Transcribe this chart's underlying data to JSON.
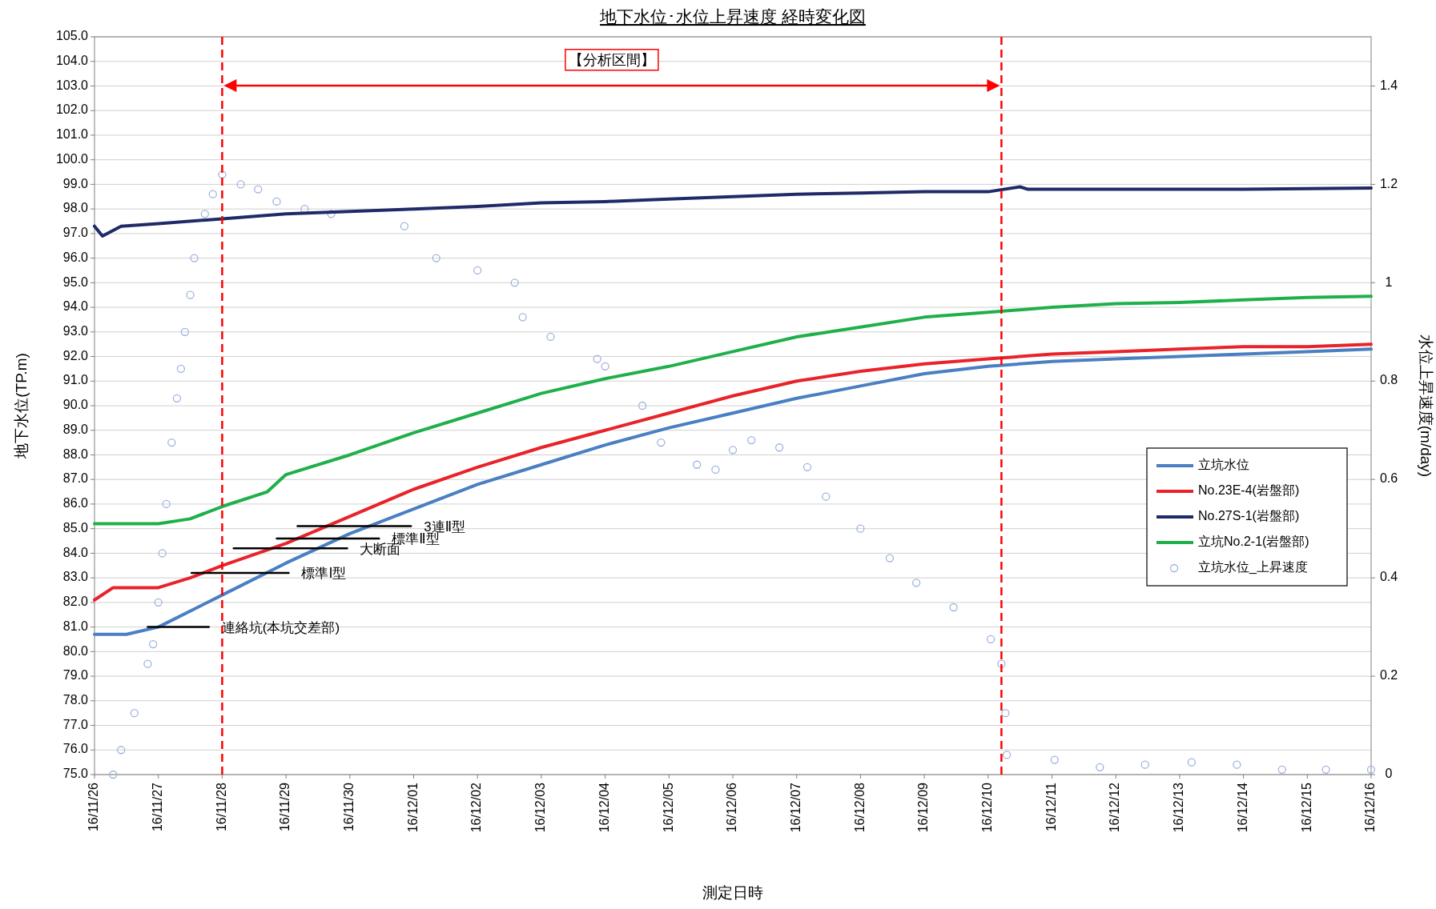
{
  "chart_data": {
    "type": "line",
    "title": "地下水位･水位上昇速度 経時変化図",
    "xlabel": "測定日時",
    "ylabel": "地下水位(TP.m)",
    "y2label": "水位上昇速度(m/day)",
    "xlim": [
      "--11-26",
      "--12-16"
    ],
    "xticks": [
      {
        "value": "--11-26",
        "label": "16/11/26"
      },
      {
        "value": "--11-27",
        "label": "16/11/27"
      },
      {
        "value": "--11-28",
        "label": "16/11/28"
      },
      {
        "value": "--11-29",
        "label": "16/11/29"
      },
      {
        "value": "--11-30",
        "label": "16/11/30"
      },
      {
        "value": "--12-01",
        "label": "16/12/01"
      },
      {
        "value": "--12-02",
        "label": "16/12/02"
      },
      {
        "value": "--12-03",
        "label": "16/12/03"
      },
      {
        "value": "--12-04",
        "label": "16/12/04"
      },
      {
        "value": "--12-05",
        "label": "16/12/05"
      },
      {
        "value": "--12-06",
        "label": "16/12/06"
      },
      {
        "value": "--12-07",
        "label": "16/12/07"
      },
      {
        "value": "--12-08",
        "label": "16/12/08"
      },
      {
        "value": "--12-09",
        "label": "16/12/09"
      },
      {
        "value": "--12-10",
        "label": "16/12/10"
      },
      {
        "value": "--12-11",
        "label": "16/12/11"
      },
      {
        "value": "--12-12",
        "label": "16/12/12"
      },
      {
        "value": "--12-13",
        "label": "16/12/13"
      },
      {
        "value": "--12-14",
        "label": "16/12/14"
      },
      {
        "value": "--12-15",
        "label": "16/12/15"
      },
      {
        "value": "--12-16",
        "label": "16/12/16"
      }
    ],
    "ylim": [
      75,
      105
    ],
    "yticks": [
      {
        "value": 75,
        "label": "75.0"
      },
      {
        "value": 76,
        "label": "76.0"
      },
      {
        "value": 77,
        "label": "77.0"
      },
      {
        "value": 78,
        "label": "78.0"
      },
      {
        "value": 79,
        "label": "79.0"
      },
      {
        "value": 80,
        "label": "80.0"
      },
      {
        "value": 81,
        "label": "81.0"
      },
      {
        "value": 82,
        "label": "82.0"
      },
      {
        "value": 83,
        "label": "83.0"
      },
      {
        "value": 84,
        "label": "84.0"
      },
      {
        "value": 85,
        "label": "85.0"
      },
      {
        "value": 86,
        "label": "86.0"
      },
      {
        "value": 87,
        "label": "87.0"
      },
      {
        "value": 88,
        "label": "88.0"
      },
      {
        "value": 89,
        "label": "89.0"
      },
      {
        "value": 90,
        "label": "90.0"
      },
      {
        "value": 91,
        "label": "91.0"
      },
      {
        "value": 92,
        "label": "92.0"
      },
      {
        "value": 93,
        "label": "93.0"
      },
      {
        "value": 94,
        "label": "94.0"
      },
      {
        "value": 95,
        "label": "95.0"
      },
      {
        "value": 96,
        "label": "96.0"
      },
      {
        "value": 97,
        "label": "97.0"
      },
      {
        "value": 98,
        "label": "98.0"
      },
      {
        "value": 99,
        "label": "99.0"
      },
      {
        "value": 100,
        "label": "100.0"
      },
      {
        "value": 101,
        "label": "101.0"
      },
      {
        "value": 102,
        "label": "102.0"
      },
      {
        "value": 103,
        "label": "103.0"
      },
      {
        "value": 104,
        "label": "104.0"
      },
      {
        "value": 105,
        "label": "105.0"
      }
    ],
    "y2lim": [
      0,
      1.5
    ],
    "y2ticks": [
      0,
      0.2,
      0.4,
      0.6,
      0.8,
      1,
      1.2,
      1.4
    ],
    "grid": "y",
    "legend": "right",
    "series": [
      {
        "name": "立坑水位",
        "color": "#4a7fc1",
        "x": [
          "--11-26",
          "--11-26T12:00",
          "--11-27",
          "--11-28",
          "--11-29",
          "--11-30",
          "--12-01",
          "--12-02",
          "--12-03",
          "--12-04",
          "--12-05",
          "--12-06",
          "--12-07",
          "--12-08",
          "--12-09",
          "--12-10",
          "--12-11",
          "--12-12",
          "--12-13",
          "--12-14",
          "--12-15",
          "--12-16"
        ],
        "values": [
          80.7,
          80.7,
          81.0,
          82.3,
          83.6,
          84.8,
          85.8,
          86.8,
          87.6,
          88.4,
          89.1,
          89.7,
          90.3,
          90.8,
          91.3,
          91.6,
          91.8,
          91.9,
          92.0,
          92.1,
          92.2,
          92.3
        ]
      },
      {
        "name": "No.23E-4(岩盤部)",
        "color": "#e8232a",
        "x": [
          "--11-26",
          "--11-26T07:00",
          "--11-27",
          "--11-27T12:00",
          "--11-28",
          "--11-29",
          "--11-30",
          "--12-01",
          "--12-02",
          "--12-03",
          "--12-04",
          "--12-05",
          "--12-06",
          "--12-07",
          "--12-08",
          "--12-09",
          "--12-10",
          "--12-11",
          "--12-12",
          "--12-13",
          "--12-14",
          "--12-15",
          "--12-16"
        ],
        "values": [
          82.1,
          82.6,
          82.6,
          83.0,
          83.5,
          84.4,
          85.5,
          86.6,
          87.5,
          88.3,
          89.0,
          89.7,
          90.4,
          91.0,
          91.4,
          91.7,
          91.9,
          92.1,
          92.2,
          92.3,
          92.4,
          92.4,
          92.5
        ]
      },
      {
        "name": "No.27S-1(岩盤部)",
        "color": "#1f2a68",
        "x": [
          "--11-26",
          "--11-26T03:00",
          "--11-26T10:00",
          "--11-27",
          "--11-28",
          "--11-29",
          "--11-30",
          "--12-01",
          "--12-02",
          "--12-03",
          "--12-04",
          "--12-05",
          "--12-06",
          "--12-07",
          "--12-08",
          "--12-09",
          "--12-10",
          "--12-10T12:00",
          "--12-10T15:00",
          "--12-12",
          "--12-14",
          "--12-16"
        ],
        "values": [
          97.3,
          96.9,
          97.3,
          97.4,
          97.6,
          97.8,
          97.9,
          98.0,
          98.1,
          98.25,
          98.3,
          98.4,
          98.5,
          98.6,
          98.65,
          98.7,
          98.7,
          98.9,
          98.8,
          98.8,
          98.8,
          98.85
        ]
      },
      {
        "name": "立坑No.2-1(岩盤部)",
        "color": "#1fb04b",
        "x": [
          "--11-26",
          "--11-27",
          "--11-27T12:00",
          "--11-28",
          "--11-28T17:00",
          "--11-29",
          "--11-30",
          "--12-01",
          "--12-02",
          "--12-03",
          "--12-04",
          "--12-05",
          "--12-06",
          "--12-07",
          "--12-08",
          "--12-09",
          "--12-10",
          "--12-11",
          "--12-12",
          "--12-13",
          "--12-14",
          "--12-15",
          "--12-16"
        ],
        "values": [
          85.2,
          85.2,
          85.4,
          85.9,
          86.5,
          87.2,
          88.0,
          88.9,
          89.7,
          90.5,
          91.1,
          91.6,
          92.2,
          92.8,
          93.2,
          93.6,
          93.8,
          94.0,
          94.15,
          94.2,
          94.3,
          94.4,
          94.45
        ]
      },
      {
        "name": "立坑水位_上昇速度",
        "type": "scatter",
        "axis": "y2",
        "marker": "circle",
        "color": "#9fb3dc",
        "x": [
          "--11-26T07:00",
          "--11-26T10:00",
          "--11-26T15:00",
          "--11-26T20:00",
          "--11-26T22:00",
          "--11-27T00:00",
          "--11-27T01:30",
          "--11-27T03:00",
          "--11-27T05:00",
          "--11-27T07:00",
          "--11-27T08:30",
          "--11-27T10:00",
          "--11-27T12:00",
          "--11-27T13:30",
          "--11-27T17:30",
          "--11-27T20:30",
          "--11-28T00:00",
          "--11-28T07:00",
          "--11-28T13:30",
          "--11-28T20:30",
          "--11-29T07:00",
          "--11-29T17:00",
          "--11-30T20:30",
          "--12-01T08:30",
          "--12-02T00:00",
          "--12-02T14:00",
          "--12-02T17:00",
          "--12-03T03:30",
          "--12-03T21:00",
          "--12-04T00:00",
          "--12-04T14:00",
          "--12-04T21:00",
          "--12-05T10:30",
          "--12-05T17:30",
          "--12-06T00:00",
          "--12-06T07:00",
          "--12-06T17:30",
          "--12-07T04:00",
          "--12-07T11:00",
          "--12-08T00:00",
          "--12-08T11:00",
          "--12-08T21:00",
          "--12-09T11:00",
          "--12-10T01:00",
          "--12-10T05:00",
          "--12-10T06:30",
          "--12-10T07:00",
          "--12-11T01:00",
          "--12-11T18:00",
          "--12-12T11:00",
          "--12-13T04:30",
          "--12-13T21:30",
          "--12-14T14:30",
          "--12-15T07:00",
          "--12-16T00:00"
        ],
        "values": [
          0.0,
          0.05,
          0.125,
          0.225,
          0.265,
          0.35,
          0.45,
          0.55,
          0.675,
          0.765,
          0.825,
          0.9,
          0.975,
          1.05,
          1.14,
          1.18,
          1.22,
          1.2,
          1.19,
          1.165,
          1.15,
          1.14,
          1.115,
          1.05,
          1.025,
          1.0,
          0.93,
          0.89,
          0.845,
          0.83,
          0.75,
          0.675,
          0.63,
          0.62,
          0.66,
          0.68,
          0.665,
          0.625,
          0.565,
          0.5,
          0.44,
          0.39,
          0.34,
          0.275,
          0.225,
          0.125,
          0.04,
          0.03,
          0.015,
          0.02,
          0.025,
          0.02,
          0.01,
          0.01,
          0.01
        ]
      },
      {
        "type": "line",
        "color": "#000000",
        "x": [
          "--11-26T20:00",
          "--11-27T19:00"
        ],
        "values": [
          81.0,
          81.0
        ]
      },
      {
        "type": "line",
        "color": "#000000",
        "x": [
          "--11-27T12:30",
          "--11-29T01:00"
        ],
        "values": [
          83.2,
          83.2
        ]
      },
      {
        "type": "line",
        "color": "#000000",
        "x": [
          "--11-28T04:20",
          "--11-29T23:00"
        ],
        "values": [
          84.2,
          84.2
        ]
      },
      {
        "type": "line",
        "color": "#000000",
        "x": [
          "--11-28T20:30",
          "--11-30T11:00"
        ],
        "values": [
          84.6,
          84.6
        ]
      },
      {
        "type": "line",
        "color": "#000000",
        "x": [
          "--11-29T04:20",
          "--11-30T23:00"
        ],
        "values": [
          85.1,
          85.1
        ]
      }
    ],
    "ref_lines": [
      {
        "axis": "x",
        "value": "--11-28",
        "color": "#ff0000",
        "line_style": "dashed"
      },
      {
        "axis": "x",
        "value": "--12-10T05:00",
        "color": "#ff0000",
        "line_style": "dashed"
      }
    ],
    "annotations": [
      "【分析区間】",
      {
        "text": "連絡坑(本坑交差部)",
        "x": "--11-27T19:00",
        "y": 81.0
      },
      {
        "text": "標準Ⅰ型",
        "x": "--11-29T01:00",
        "y": 83.2
      },
      {
        "text": "大断面",
        "x": "--11-29T23:00",
        "y": 84.2
      },
      {
        "text": "標準Ⅱ型",
        "x": "--11-30T11:00",
        "y": 84.6
      },
      {
        "text": "3連Ⅱ型",
        "x": "--11-30T23:00",
        "y": 85.1
      }
    ]
  }
}
